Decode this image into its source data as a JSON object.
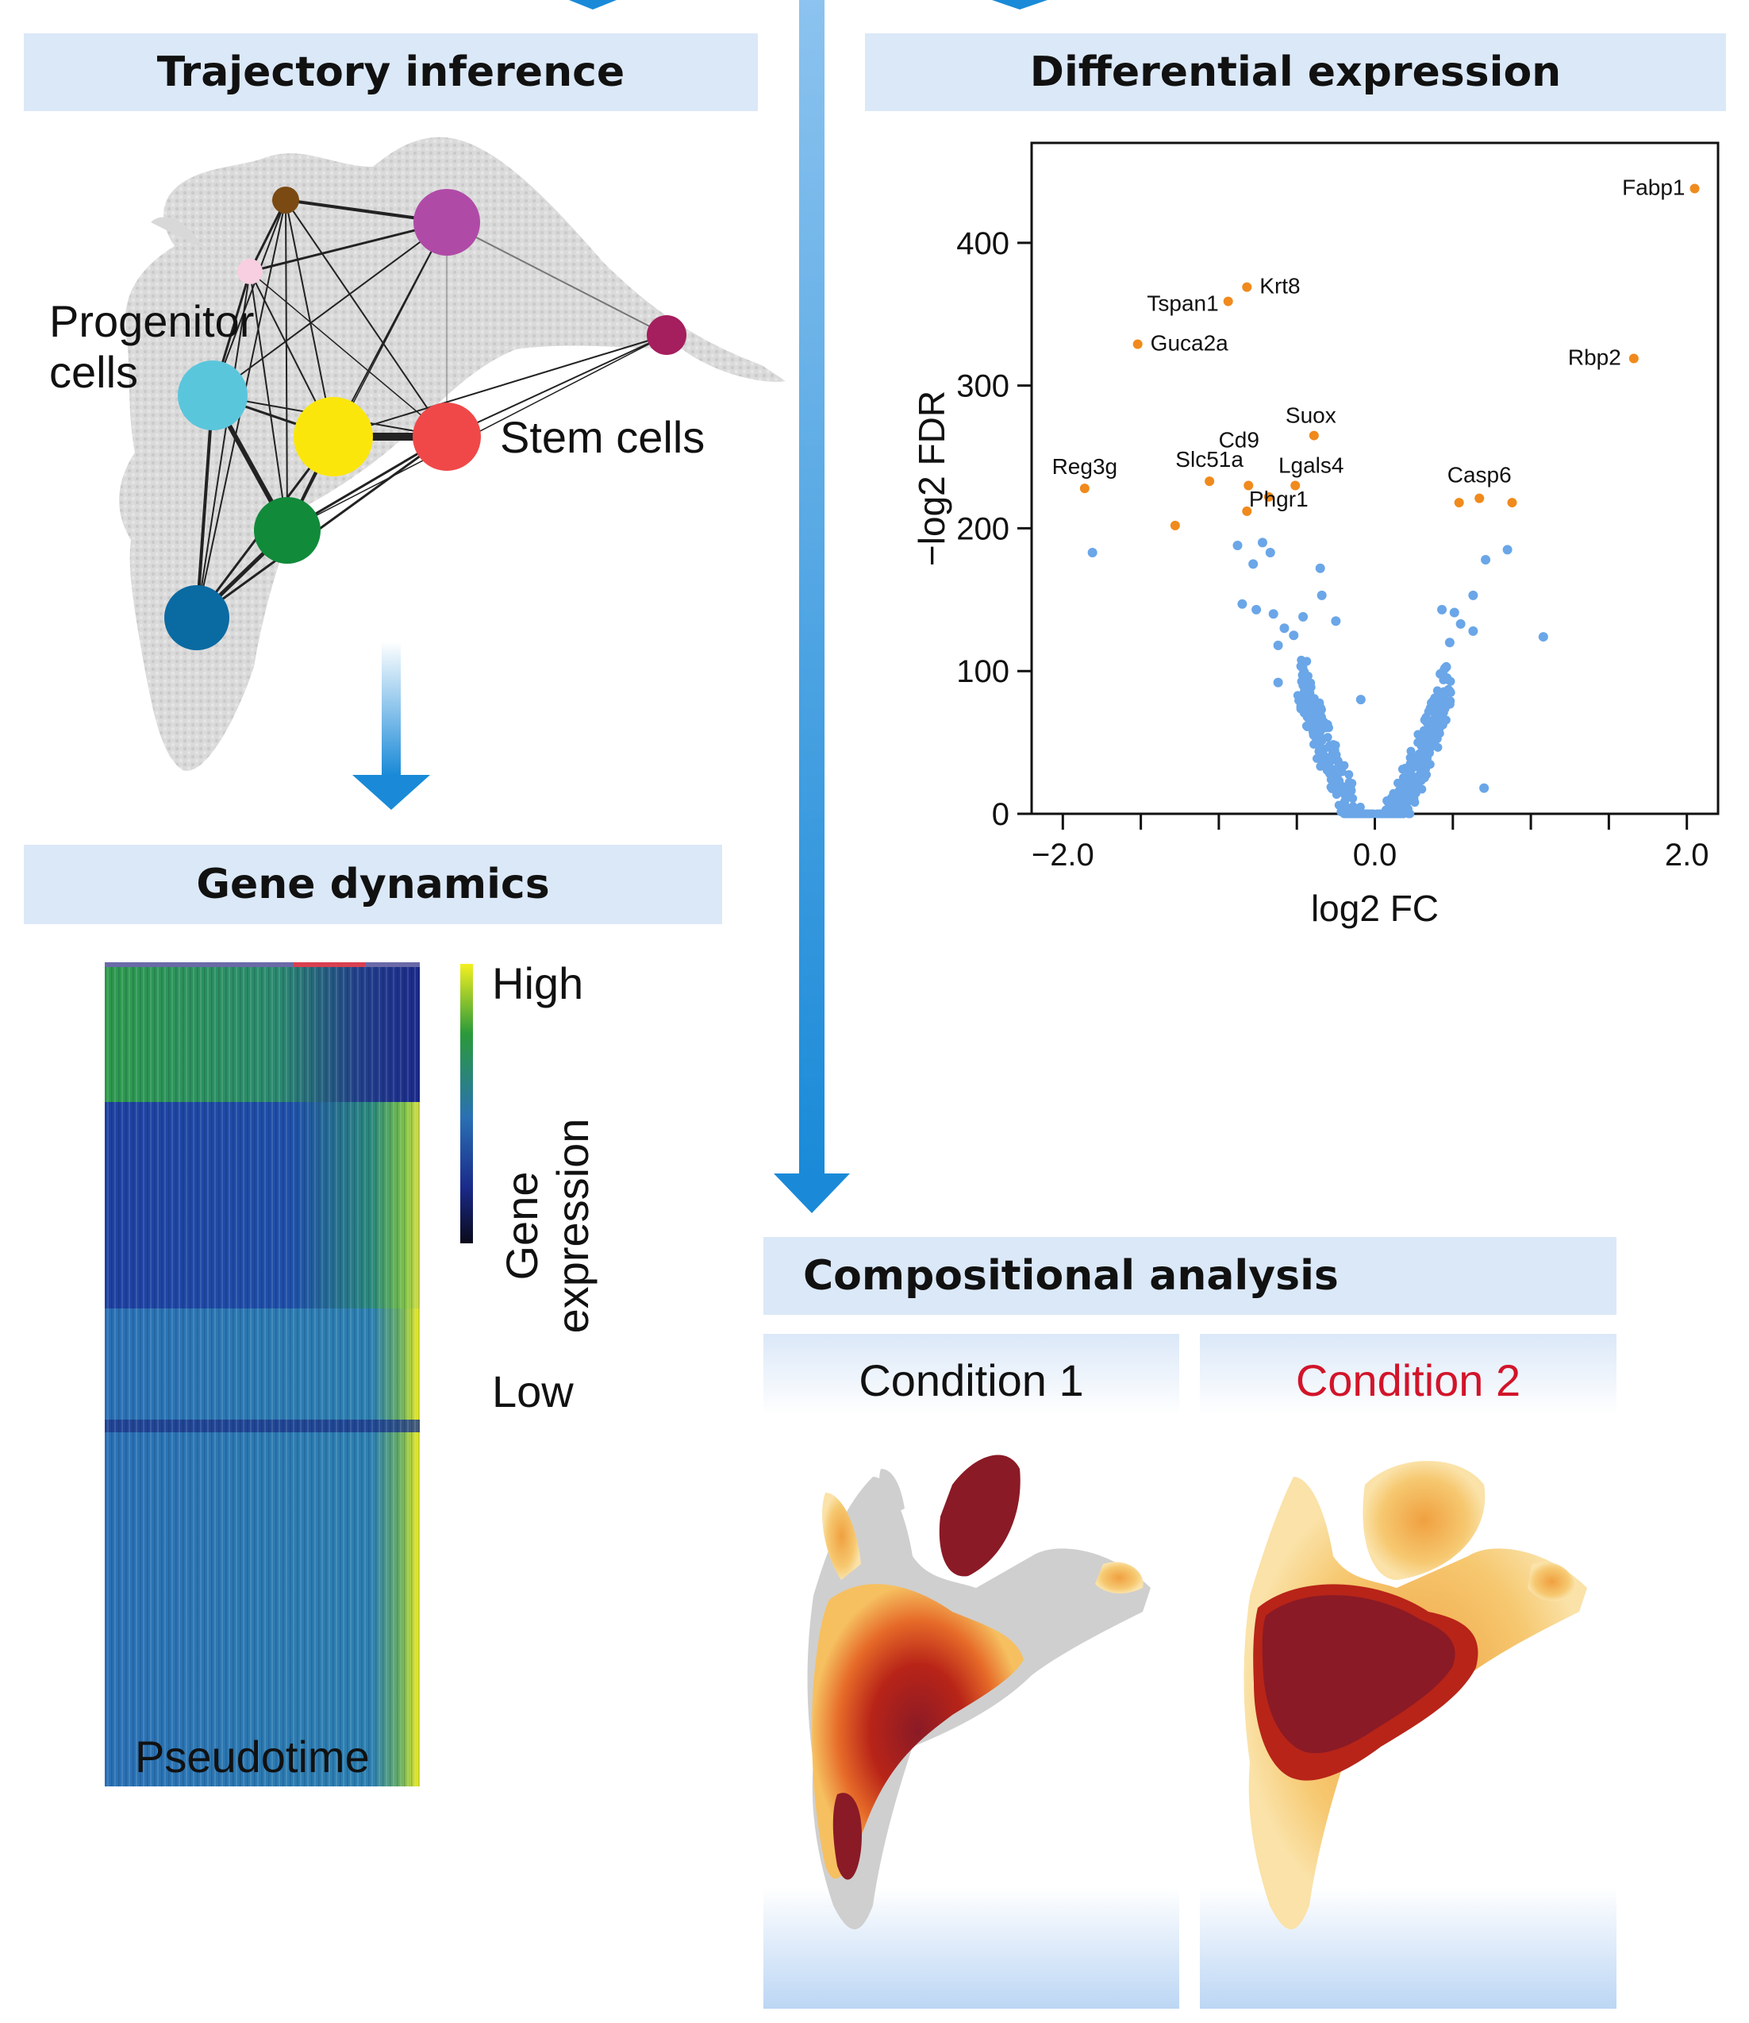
{
  "sections": {
    "trajectory": {
      "title": "Trajectory inference",
      "label_progenitor_1": "Progenitor",
      "label_progenitor_2": "cells",
      "label_stem": "Stem cells"
    },
    "gene_dynamics": {
      "title": "Gene dynamics",
      "high": "High",
      "low": "Low",
      "colorbar_1": "Gene",
      "colorbar_2": "expression",
      "x_label": "Pseudotime"
    },
    "differential": {
      "title": "Differential expression"
    },
    "compositional": {
      "title": "Compositional analysis",
      "condition1": "Condition 1",
      "condition2": "Condition 2"
    }
  },
  "colors": {
    "banner": "#dbe8f8",
    "arrow": "#1a8ad8",
    "up_genes": "#f08a1c",
    "other_genes": "#6aa6e8",
    "condition2": "#d2142a"
  },
  "chart_data": {
    "type": "scatter",
    "xlabel": "log2 FC",
    "ylabel": "−log2 FDR",
    "xlim": [
      -2.2,
      2.2
    ],
    "ylim": [
      0,
      470
    ],
    "xticks": [
      -2.0,
      0.0,
      2.0
    ],
    "xtick_labels": [
      "−2.0",
      "0.0",
      "2.0"
    ],
    "yticks": [
      0,
      100,
      200,
      300,
      400
    ],
    "labeled_genes": [
      {
        "name": "Fabp1",
        "x": 2.05,
        "y": 438
      },
      {
        "name": "Krt8",
        "x": -0.82,
        "y": 369
      },
      {
        "name": "Tspan1",
        "x": -0.94,
        "y": 359
      },
      {
        "name": "Guca2a",
        "x": -1.52,
        "y": 329
      },
      {
        "name": "Rbp2",
        "x": 1.66,
        "y": 319
      },
      {
        "name": "Suox",
        "x": -0.39,
        "y": 265
      },
      {
        "name": "Cd9",
        "x": -0.81,
        "y": 230
      },
      {
        "name": "Slc51a",
        "x": -1.06,
        "y": 233
      },
      {
        "name": "Lgals4",
        "x": -0.51,
        "y": 230
      },
      {
        "name": "Reg3g",
        "x": -1.86,
        "y": 228
      },
      {
        "name": "Phgr1",
        "x": -0.82,
        "y": 212
      },
      {
        "name": "Casp6",
        "x": 0.67,
        "y": 221
      }
    ],
    "highlight_points": [
      [
        -1.28,
        202
      ],
      [
        -0.68,
        222
      ],
      [
        0.54,
        218
      ],
      [
        0.88,
        218
      ]
    ],
    "background_points": [
      [
        -1.81,
        183
      ],
      [
        1.08,
        124
      ],
      [
        0.7,
        18
      ],
      [
        -0.88,
        188
      ],
      [
        -0.72,
        190
      ],
      [
        -0.35,
        172
      ],
      [
        -0.67,
        183
      ],
      [
        -0.78,
        175
      ],
      [
        0.85,
        185
      ],
      [
        0.71,
        178
      ],
      [
        0.63,
        153
      ],
      [
        0.43,
        143
      ],
      [
        0.51,
        141
      ],
      [
        0.55,
        133
      ],
      [
        -0.34,
        153
      ],
      [
        -0.85,
        147
      ],
      [
        -0.76,
        143
      ],
      [
        -0.65,
        140
      ],
      [
        -0.25,
        135
      ],
      [
        -0.62,
        118
      ],
      [
        -0.46,
        138
      ],
      [
        -0.52,
        125
      ],
      [
        -0.58,
        130
      ],
      [
        -0.62,
        92
      ],
      [
        0.48,
        120
      ],
      [
        0.63,
        128
      ],
      [
        0.42,
        98
      ],
      [
        0.45,
        102
      ],
      [
        -0.09,
        80
      ]
    ]
  }
}
